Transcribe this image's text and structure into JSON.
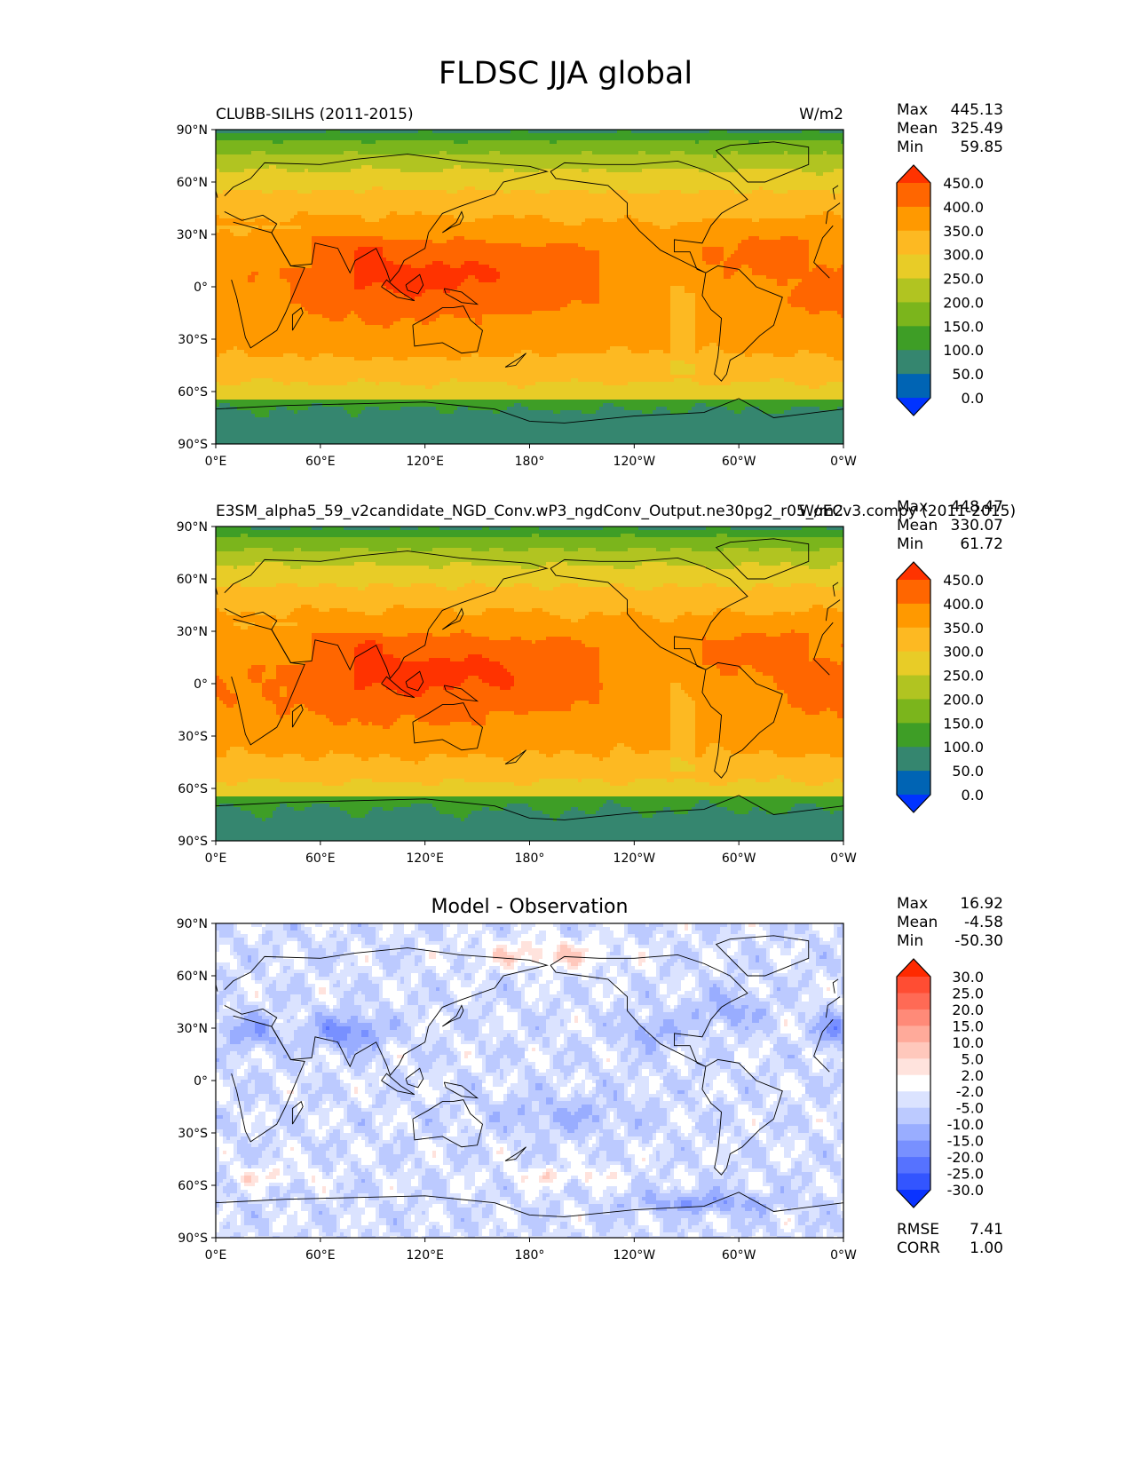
{
  "figure": {
    "title": "FLDSC JJA global"
  },
  "chart_data": [
    {
      "type": "heatmap",
      "id": "test",
      "title_left": "CLUBB-SILHS (2011-2015)",
      "title_right": "W/m2",
      "title_center": "",
      "xticks": [
        "0°E",
        "60°E",
        "120°E",
        "180°",
        "120°W",
        "60°W",
        "0°W"
      ],
      "yticks": [
        "90°N",
        "60°N",
        "30°N",
        "0°",
        "30°S",
        "60°S",
        "90°S"
      ],
      "xlim": [
        0,
        360
      ],
      "ylim": [
        -90,
        90
      ],
      "stats": [
        {
          "label": "Max",
          "value": "445.13"
        },
        {
          "label": "Mean",
          "value": "325.49"
        },
        {
          "label": "Min",
          "value": "59.85"
        }
      ],
      "colorbar": {
        "levels": [
          "450.0",
          "400.0",
          "350.0",
          "300.0",
          "250.0",
          "200.0",
          "150.0",
          "100.0",
          "50.0",
          "0.0"
        ],
        "colors": [
          "#ff3300",
          "#ff6600",
          "#ff9900",
          "#fdb922",
          "#e8cc27",
          "#b1c421",
          "#7bb51c",
          "#3e9e26",
          "#35866f",
          "#0064b4",
          "#0033ff"
        ]
      },
      "field": "sw"
    },
    {
      "type": "heatmap",
      "id": "ref",
      "title_left": "E3SM_alpha5_59_v2candidate_NGD_Conv.wP3_ngdConv_Output.ne30pg2_r05_oECv3.compy (2011-2015)",
      "title_right": "W/m2",
      "title_center": "",
      "xticks": [
        "0°E",
        "60°E",
        "120°E",
        "180°",
        "120°W",
        "60°W",
        "0°W"
      ],
      "yticks": [
        "90°N",
        "60°N",
        "30°N",
        "0°",
        "30°S",
        "60°S",
        "90°S"
      ],
      "xlim": [
        0,
        360
      ],
      "ylim": [
        -90,
        90
      ],
      "stats": [
        {
          "label": "Max",
          "value": "448.47"
        },
        {
          "label": "Mean",
          "value": "330.07"
        },
        {
          "label": "Min",
          "value": "61.72"
        }
      ],
      "colorbar": {
        "levels": [
          "450.0",
          "400.0",
          "350.0",
          "300.0",
          "250.0",
          "200.0",
          "150.0",
          "100.0",
          "50.0",
          "0.0"
        ],
        "colors": [
          "#ff3300",
          "#ff6600",
          "#ff9900",
          "#fdb922",
          "#e8cc27",
          "#b1c421",
          "#7bb51c",
          "#3e9e26",
          "#35866f",
          "#0064b4",
          "#0033ff"
        ]
      },
      "field": "sw2"
    },
    {
      "type": "heatmap",
      "id": "diff",
      "title_left": "",
      "title_right": "",
      "title_center": "Model - Observation",
      "xticks": [
        "0°E",
        "60°E",
        "120°E",
        "180°",
        "120°W",
        "60°W",
        "0°W"
      ],
      "yticks": [
        "90°N",
        "60°N",
        "30°N",
        "0°",
        "30°S",
        "60°S",
        "90°S"
      ],
      "xlim": [
        0,
        360
      ],
      "ylim": [
        -90,
        90
      ],
      "stats": [
        {
          "label": "Max",
          "value": "16.92"
        },
        {
          "label": "Mean",
          "value": "-4.58"
        },
        {
          "label": "Min",
          "value": "-50.30"
        }
      ],
      "metrics": [
        {
          "label": "RMSE",
          "value": "7.41"
        },
        {
          "label": "CORR",
          "value": "1.00"
        }
      ],
      "colorbar": {
        "levels": [
          "30.0",
          "25.0",
          "20.0",
          "15.0",
          "10.0",
          "5.0",
          "2.0",
          "-2.0",
          "-5.0",
          "-10.0",
          "-15.0",
          "-20.0",
          "-25.0",
          "-30.0"
        ],
        "colors": [
          "#ff2a00",
          "#ff4d33",
          "#ff6a55",
          "#ff8a78",
          "#ffaa9a",
          "#ffc8bc",
          "#ffe3dd",
          "#ffffff",
          "#dbe3ff",
          "#bccaff",
          "#99adff",
          "#7890ff",
          "#5672ff",
          "#3355ff",
          "#0a33ff"
        ]
      },
      "field": "diff"
    }
  ]
}
